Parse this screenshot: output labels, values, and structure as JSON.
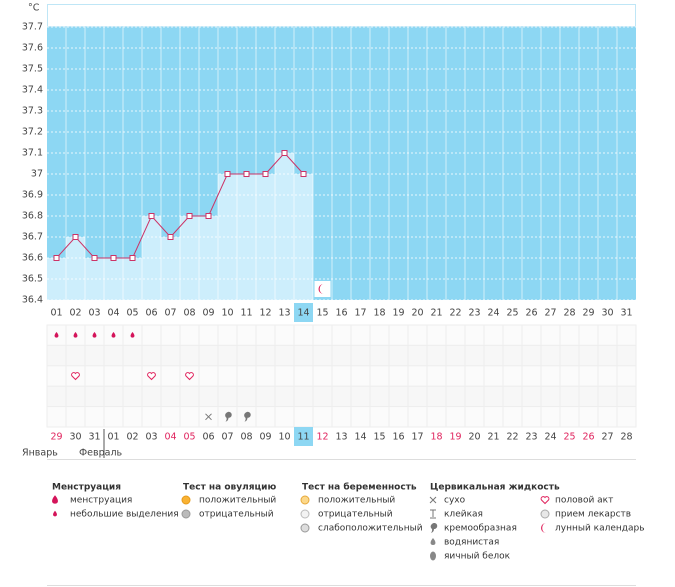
{
  "chart_data": {
    "type": "line",
    "y_label": "°C",
    "categories": [
      "01",
      "02",
      "03",
      "04",
      "05",
      "06",
      "07",
      "08",
      "09",
      "10",
      "11",
      "12",
      "13",
      "14",
      "15",
      "16",
      "17",
      "18",
      "19",
      "20",
      "21",
      "22",
      "23",
      "24",
      "25",
      "26",
      "27",
      "28",
      "29",
      "30",
      "31"
    ],
    "values": [
      36.6,
      36.7,
      36.6,
      36.6,
      36.6,
      36.8,
      36.7,
      36.8,
      36.8,
      37,
      37,
      37,
      37.1,
      37,
      null,
      null,
      null,
      null,
      null,
      null,
      null,
      null,
      null,
      null,
      null,
      null,
      null,
      null,
      null,
      null,
      null
    ],
    "ylim": [
      36.4,
      37.7
    ],
    "yticks": [
      36.4,
      36.5,
      36.6,
      36.7,
      36.8,
      36.9,
      37,
      37.1,
      37.2,
      37.3,
      37.4,
      37.5,
      37.6,
      37.7
    ],
    "color": "#cc3366",
    "fill": "#cdeefc",
    "plot_background": "#8dd7f3",
    "grid": true,
    "today_index": 13,
    "calendar": {
      "dates": [
        "29",
        "30",
        "31",
        "01",
        "02",
        "03",
        "04",
        "05",
        "06",
        "07",
        "08",
        "09",
        "10",
        "11",
        "12",
        "13",
        "14",
        "15",
        "16",
        "17",
        "18",
        "19",
        "20",
        "21",
        "22",
        "23",
        "24",
        "25",
        "26",
        "27",
        "28"
      ],
      "red": [
        0,
        6,
        7,
        14,
        20,
        21,
        27,
        28
      ],
      "months": [
        {
          "label": "Январь",
          "start": 0
        },
        {
          "label": "Февраль",
          "start": 3
        }
      ]
    },
    "events": [
      {
        "day": "01",
        "item": "небольшие выделения"
      },
      {
        "day": "02",
        "item": "небольшие выделения"
      },
      {
        "day": "03",
        "item": "небольшие выделения"
      },
      {
        "day": "04",
        "item": "небольшие выделения"
      },
      {
        "day": "05",
        "item": "небольшие выделения"
      },
      {
        "day": "02",
        "item": "половой акт"
      },
      {
        "day": "06",
        "item": "половой акт"
      },
      {
        "day": "08",
        "item": "половой акт"
      },
      {
        "day": "09",
        "item": "сухо"
      },
      {
        "day": "10",
        "item": "кремообразная"
      },
      {
        "day": "11",
        "item": "кремообразная"
      },
      {
        "day": "15",
        "item": "лунный календарь"
      }
    ]
  },
  "legend": [
    {
      "title": "Менструация",
      "items": [
        "менструация",
        "небольшие выделения"
      ]
    },
    {
      "title": "Тест на овуляцию",
      "items": [
        "положительный",
        "отрицательный"
      ]
    },
    {
      "title": "Тест на беременность",
      "items": [
        "положительный",
        "отрицательный",
        "слабоположительный"
      ]
    },
    {
      "title": "Цервикальная жидкость",
      "items": [
        "сухо",
        "клейкая",
        "кремообразная",
        "водянистая",
        "яичный белок"
      ]
    },
    {
      "items": [
        "половой акт",
        "прием лекарств",
        "лунный календарь"
      ]
    }
  ]
}
